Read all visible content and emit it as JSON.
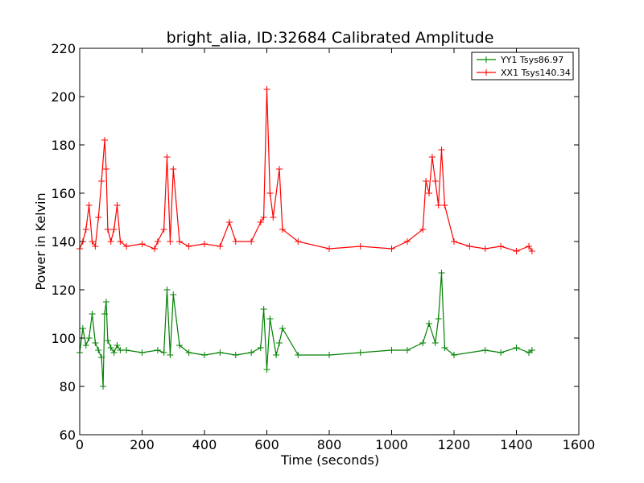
{
  "chart_data": {
    "type": "line",
    "title": "bright_alia, ID:32684 Calibrated Amplitude",
    "xlabel": "Time (seconds)",
    "ylabel": "Power in Kelvin",
    "xlim": [
      0,
      1600
    ],
    "ylim": [
      60,
      220
    ],
    "xticks": [
      "0",
      "200",
      "400",
      "600",
      "800",
      "1000",
      "1200",
      "1400",
      "1600"
    ],
    "yticks": [
      "60",
      "80",
      "100",
      "120",
      "140",
      "160",
      "180",
      "200",
      "220"
    ],
    "grid": false,
    "legend_position": "top-right",
    "marker": "+",
    "series": [
      {
        "name": "YY1 Tsys86.97",
        "color": "#008000",
        "x": [
          0,
          10,
          20,
          30,
          40,
          50,
          60,
          70,
          75,
          80,
          85,
          90,
          100,
          110,
          120,
          130,
          150,
          200,
          250,
          270,
          280,
          290,
          300,
          320,
          350,
          400,
          450,
          500,
          550,
          580,
          590,
          600,
          610,
          630,
          640,
          650,
          700,
          800,
          900,
          1000,
          1050,
          1100,
          1120,
          1140,
          1150,
          1160,
          1170,
          1200,
          1300,
          1350,
          1400,
          1440,
          1450
        ],
        "y": [
          94,
          104,
          97,
          100,
          110,
          98,
          95,
          92,
          80,
          110,
          115,
          99,
          96,
          94,
          97,
          95,
          95,
          94,
          95,
          94,
          120,
          93,
          118,
          97,
          94,
          93,
          94,
          93,
          94,
          96,
          112,
          87,
          108,
          93,
          98,
          104,
          93,
          93,
          94,
          95,
          95,
          98,
          106,
          98,
          108,
          127,
          96,
          93,
          95,
          94,
          96,
          94,
          95
        ]
      },
      {
        "name": "XX1 Tsys140.34",
        "color": "#ff0000",
        "x": [
          0,
          10,
          20,
          30,
          40,
          50,
          60,
          70,
          80,
          85,
          90,
          100,
          110,
          120,
          130,
          150,
          200,
          240,
          250,
          270,
          280,
          290,
          300,
          320,
          350,
          400,
          450,
          480,
          500,
          550,
          580,
          590,
          600,
          610,
          620,
          640,
          650,
          700,
          800,
          900,
          1000,
          1050,
          1100,
          1110,
          1120,
          1130,
          1140,
          1150,
          1160,
          1170,
          1200,
          1250,
          1300,
          1350,
          1400,
          1440,
          1450
        ],
        "y": [
          137,
          140,
          145,
          155,
          140,
          138,
          150,
          165,
          182,
          170,
          145,
          140,
          145,
          155,
          140,
          138,
          139,
          137,
          140,
          145,
          175,
          140,
          170,
          140,
          138,
          139,
          138,
          148,
          140,
          140,
          148,
          150,
          203,
          160,
          150,
          170,
          145,
          140,
          137,
          138,
          137,
          140,
          145,
          165,
          160,
          175,
          165,
          155,
          178,
          155,
          140,
          138,
          137,
          138,
          136,
          138,
          136
        ]
      }
    ]
  }
}
